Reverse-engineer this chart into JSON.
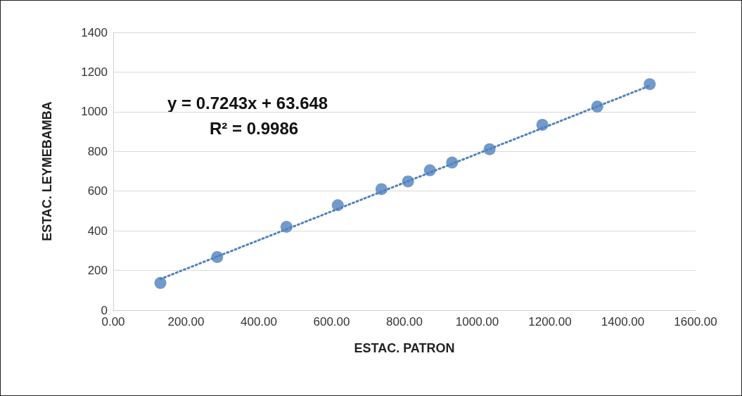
{
  "chart_data": {
    "type": "scatter",
    "xlabel": "ESTAC. PATRON",
    "ylabel": "ESTAC. LEYMEBAMBA",
    "annotations": [
      "y = 0.7243x + 63.648",
      "R² = 0.9986"
    ],
    "series": [
      {
        "color": "#4f81bd",
        "marker": "circle",
        "x": [
          129.5,
          285.7,
          476,
          617,
          737,
          810,
          870,
          931,
          1034,
          1179,
          1330,
          1474
        ],
        "values": [
          137,
          268,
          420,
          529,
          610,
          649,
          705,
          744,
          811,
          934,
          1026,
          1139
        ]
      },
      {
        "type": "line",
        "color": "#4f81bd",
        "marker": "none",
        "line_style": "dotted",
        "x": [
          129.5,
          1474
        ],
        "values": [
          157,
          1131
        ]
      }
    ],
    "xlim": [
      0,
      1600
    ],
    "xticks": [
      {
        "value": 0,
        "label": "0.00"
      },
      {
        "value": 200,
        "label": "200.00"
      },
      {
        "value": 400,
        "label": "400.00"
      },
      {
        "value": 600,
        "label": "600.00"
      },
      {
        "value": 800,
        "label": "800.00"
      },
      {
        "value": 1000,
        "label": "1000.00"
      },
      {
        "value": 1200,
        "label": "1200.00"
      },
      {
        "value": 1400,
        "label": "1400.00"
      },
      {
        "value": 1600,
        "label": "1600.00"
      }
    ],
    "ylim": [
      0,
      1400
    ],
    "yticks": [
      0,
      200,
      400,
      600,
      800,
      1000,
      1200,
      1400
    ],
    "grid": "y"
  }
}
